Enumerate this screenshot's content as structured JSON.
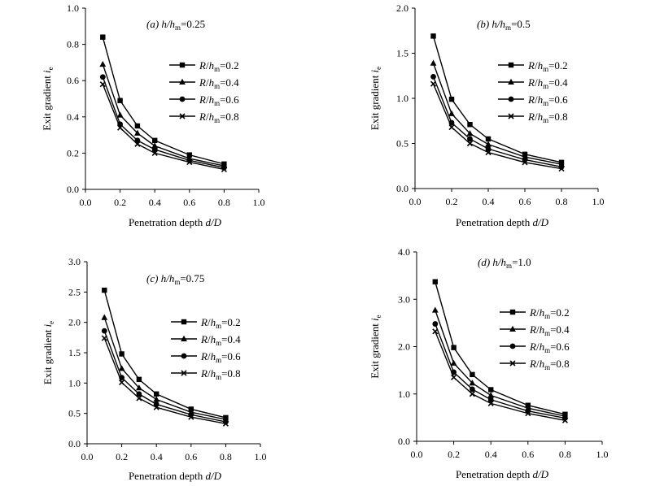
{
  "colors": {
    "line": "#000000",
    "background": "#ffffff"
  },
  "chart_data": [
    {
      "type": "line",
      "panel": "a",
      "title_parts": [
        "(a) ",
        "h",
        "/",
        "h",
        "m",
        "=0.25"
      ],
      "xlabel": "Penetration depth d/D",
      "ylabel": "Exit gradient i",
      "ylabel_sub": "e",
      "xlim": [
        0,
        1.0
      ],
      "ylim": [
        0,
        1.0
      ],
      "xticks": [
        "0.0",
        "0.2",
        "0.4",
        "0.6",
        "0.8",
        "1.0"
      ],
      "yticks": [
        "0.0",
        "0.2",
        "0.4",
        "0.6",
        "0.8",
        "1.0"
      ],
      "x": [
        0.1,
        0.2,
        0.3,
        0.4,
        0.6,
        0.8
      ],
      "series": [
        {
          "name": "R/hm=0.2",
          "marker": "square",
          "values": [
            0.84,
            0.49,
            0.35,
            0.27,
            0.19,
            0.14
          ]
        },
        {
          "name": "R/hm=0.4",
          "marker": "triangle",
          "values": [
            0.69,
            0.41,
            0.31,
            0.24,
            0.17,
            0.13
          ]
        },
        {
          "name": "R/hm=0.6",
          "marker": "circle",
          "values": [
            0.62,
            0.36,
            0.27,
            0.22,
            0.16,
            0.12
          ]
        },
        {
          "name": "R/hm=0.8",
          "marker": "x",
          "values": [
            0.58,
            0.34,
            0.25,
            0.2,
            0.15,
            0.11
          ]
        }
      ],
      "legend_labels": [
        "=0.2",
        "=0.4",
        "=0.6",
        "=0.8"
      ]
    },
    {
      "type": "line",
      "panel": "b",
      "title_parts": [
        "(b) ",
        "h",
        "/",
        "h",
        "m",
        "=0.5"
      ],
      "xlabel": "Penetration depth d/D",
      "ylabel": "Exit gradient i",
      "ylabel_sub": "e",
      "xlim": [
        0,
        1.0
      ],
      "ylim": [
        0,
        2.0
      ],
      "xticks": [
        "0.0",
        "0.2",
        "0.4",
        "0.6",
        "0.8",
        "1.0"
      ],
      "yticks": [
        "0.0",
        "0.5",
        "1.0",
        "1.5",
        "2.0"
      ],
      "x": [
        0.1,
        0.2,
        0.3,
        0.4,
        0.6,
        0.8
      ],
      "series": [
        {
          "name": "R/hm=0.2",
          "marker": "square",
          "values": [
            1.69,
            0.99,
            0.71,
            0.55,
            0.38,
            0.29
          ]
        },
        {
          "name": "R/hm=0.4",
          "marker": "triangle",
          "values": [
            1.39,
            0.83,
            0.61,
            0.49,
            0.35,
            0.27
          ]
        },
        {
          "name": "R/hm=0.6",
          "marker": "circle",
          "values": [
            1.24,
            0.73,
            0.55,
            0.44,
            0.32,
            0.24
          ]
        },
        {
          "name": "R/hm=0.8",
          "marker": "x",
          "values": [
            1.16,
            0.68,
            0.5,
            0.4,
            0.29,
            0.22
          ]
        }
      ],
      "legend_labels": [
        "=0.2",
        "=0.4",
        "=0.6",
        "=0.8"
      ]
    },
    {
      "type": "line",
      "panel": "c",
      "title_parts": [
        "(c) ",
        "h",
        "/",
        "h",
        "m",
        "=0.75"
      ],
      "xlabel": "Penetration depth d/D",
      "ylabel": "Exit gradient i",
      "ylabel_sub": "e",
      "xlim": [
        0,
        1.0
      ],
      "ylim": [
        0,
        3.0
      ],
      "xticks": [
        "0.0",
        "0.2",
        "0.4",
        "0.6",
        "0.8",
        "1.0"
      ],
      "yticks": [
        "0.0",
        "0.5",
        "1.0",
        "1.5",
        "2.0",
        "2.5",
        "3.0"
      ],
      "x": [
        0.1,
        0.2,
        0.3,
        0.4,
        0.6,
        0.8
      ],
      "series": [
        {
          "name": "R/hm=0.2",
          "marker": "square",
          "values": [
            2.53,
            1.48,
            1.06,
            0.82,
            0.57,
            0.43
          ]
        },
        {
          "name": "R/hm=0.4",
          "marker": "triangle",
          "values": [
            2.08,
            1.24,
            0.92,
            0.73,
            0.52,
            0.4
          ]
        },
        {
          "name": "R/hm=0.6",
          "marker": "circle",
          "values": [
            1.86,
            1.09,
            0.82,
            0.65,
            0.48,
            0.36
          ]
        },
        {
          "name": "R/hm=0.8",
          "marker": "x",
          "values": [
            1.74,
            1.01,
            0.75,
            0.6,
            0.44,
            0.33
          ]
        }
      ],
      "legend_labels": [
        "=0.2",
        "=0.4",
        "=0.6",
        "=0.8"
      ]
    },
    {
      "type": "line",
      "panel": "d",
      "title_parts": [
        "(d) ",
        "h",
        "/",
        "h",
        "m",
        "=1.0"
      ],
      "xlabel": "Penetration depth d/D",
      "ylabel": "Exit gradient i",
      "ylabel_sub": "e",
      "xlim": [
        0,
        1.0
      ],
      "ylim": [
        0,
        4.0
      ],
      "xticks": [
        "0.0",
        "0.2",
        "0.4",
        "0.6",
        "0.8",
        "1.0"
      ],
      "yticks": [
        "0.0",
        "1.0",
        "2.0",
        "3.0",
        "4.0"
      ],
      "x": [
        0.1,
        0.2,
        0.3,
        0.4,
        0.6,
        0.8
      ],
      "series": [
        {
          "name": "R/hm=0.2",
          "marker": "square",
          "values": [
            3.37,
            1.98,
            1.41,
            1.09,
            0.76,
            0.57
          ]
        },
        {
          "name": "R/hm=0.4",
          "marker": "triangle",
          "values": [
            2.77,
            1.65,
            1.23,
            0.97,
            0.7,
            0.53
          ]
        },
        {
          "name": "R/hm=0.6",
          "marker": "circle",
          "values": [
            2.48,
            1.46,
            1.1,
            0.88,
            0.64,
            0.49
          ]
        },
        {
          "name": "R/hm=0.8",
          "marker": "x",
          "values": [
            2.32,
            1.35,
            1.0,
            0.8,
            0.59,
            0.44
          ]
        }
      ],
      "legend_labels": [
        "=0.2",
        "=0.4",
        "=0.6",
        "=0.8"
      ]
    }
  ]
}
